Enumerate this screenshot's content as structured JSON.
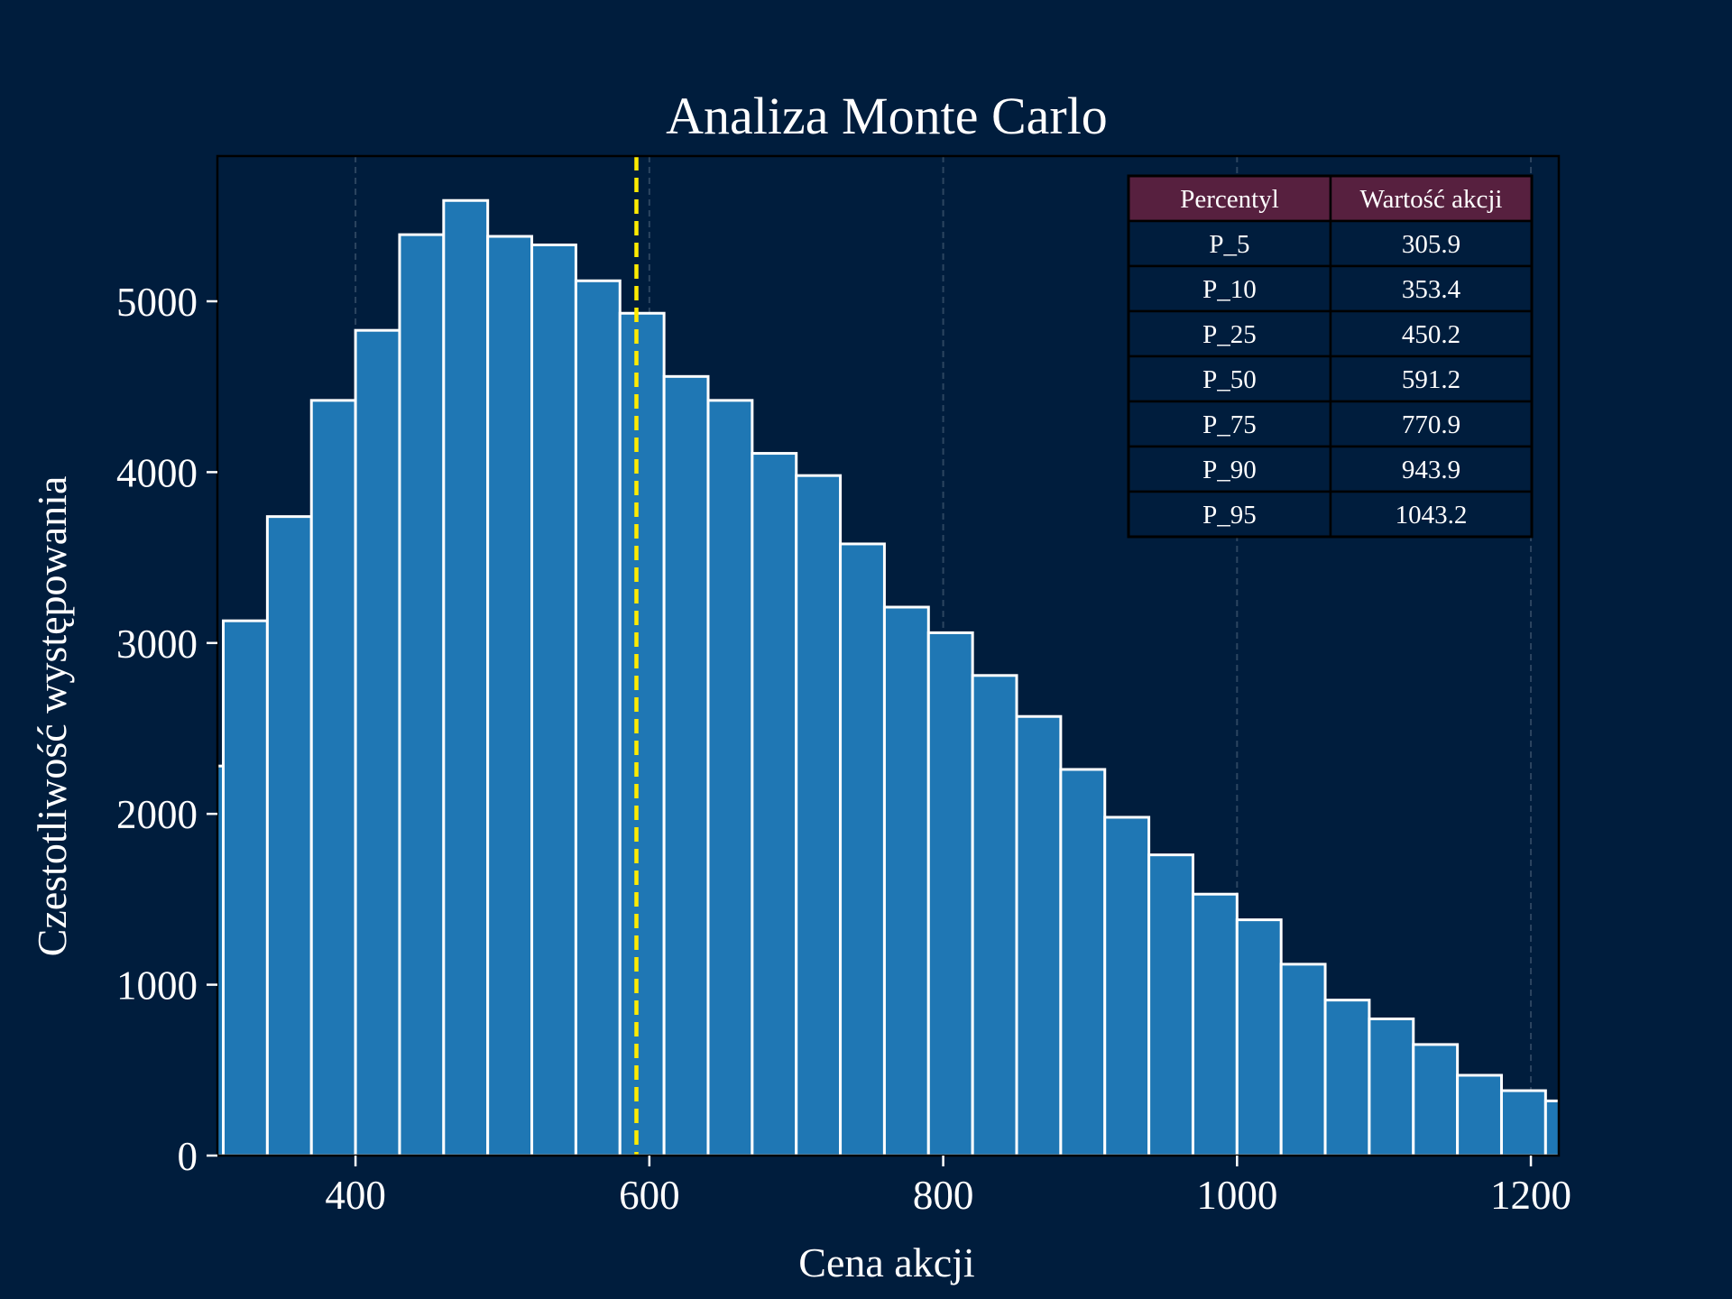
{
  "colors": {
    "background": "#001d3d",
    "bar_fill": "#1f77b4",
    "bar_edge": "#ffffff",
    "median_line": "#ffeb00",
    "table_header": "#57203f",
    "table_body": "#001d3d",
    "text": "#ffffff"
  },
  "chart_data": {
    "type": "bar",
    "title": "Analiza Monte Carlo",
    "xlabel": "Cena akcji",
    "ylabel": "Czestotliwość występowania",
    "xlim": [
      306,
      1219
    ],
    "ylim": [
      0,
      5850
    ],
    "x_ticks": [
      400,
      600,
      800,
      1000,
      1200
    ],
    "y_ticks": [
      0,
      1000,
      2000,
      3000,
      4000,
      5000
    ],
    "grid": "x-only dashed",
    "bin_width": 30,
    "bin_edges": [
      280,
      310,
      340,
      370,
      400,
      430,
      460,
      490,
      520,
      550,
      580,
      610,
      640,
      670,
      700,
      730,
      760,
      790,
      820,
      850,
      880,
      910,
      940,
      970,
      1000,
      1030,
      1060,
      1090,
      1120,
      1150,
      1180,
      1210,
      1240
    ],
    "values": [
      2280,
      3130,
      3740,
      4420,
      4830,
      5390,
      5590,
      5380,
      5330,
      5120,
      4930,
      4560,
      4420,
      4110,
      3980,
      3580,
      3210,
      3060,
      2810,
      2570,
      2260,
      1980,
      1760,
      1530,
      1380,
      1120,
      910,
      800,
      650,
      470,
      380,
      320
    ],
    "median_line_x": 591.2,
    "table": {
      "position": "top-right",
      "columns": [
        "Percentyl",
        "Wartość akcji"
      ],
      "rows": [
        [
          "P_5",
          "305.9"
        ],
        [
          "P_10",
          "353.4"
        ],
        [
          "P_25",
          "450.2"
        ],
        [
          "P_50",
          "591.2"
        ],
        [
          "P_75",
          "770.9"
        ],
        [
          "P_90",
          "943.9"
        ],
        [
          "P_95",
          "1043.2"
        ]
      ]
    }
  }
}
